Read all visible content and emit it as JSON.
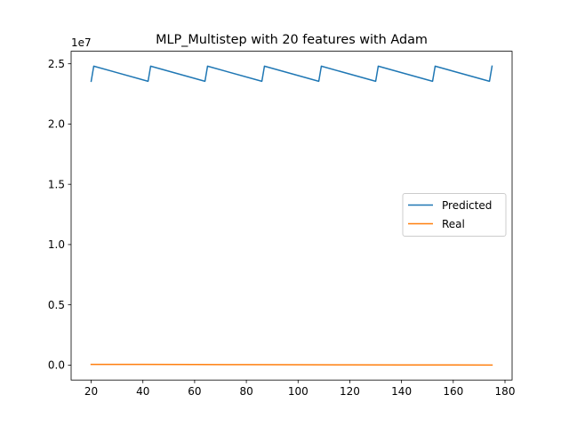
{
  "chart_data": {
    "type": "line",
    "title": "MLP_Multistep with 20 features with Adam",
    "xlabel": "",
    "ylabel": "",
    "y_offset_label": "1e7",
    "xlim": [
      12.25,
      182.75
    ],
    "ylim": [
      -1240000,
      26040000
    ],
    "xticks": [
      20,
      40,
      60,
      80,
      100,
      120,
      140,
      160,
      180
    ],
    "xtick_labels": [
      "20",
      "40",
      "60",
      "80",
      "100",
      "120",
      "140",
      "160",
      "180"
    ],
    "yticks": [
      0,
      5000000,
      10000000,
      15000000,
      20000000,
      25000000
    ],
    "ytick_labels": [
      "0.0",
      "0.5",
      "1.0",
      "1.5",
      "2.0",
      "2.5"
    ],
    "grid": false,
    "legend_position": "center-right",
    "series": [
      {
        "name": "Predicted",
        "color": "#1f77b4",
        "x": [
          20,
          21,
          42,
          43,
          64,
          65,
          86,
          87,
          108,
          109,
          130,
          131,
          152,
          153,
          174,
          175
        ],
        "y": [
          23550000,
          24800000,
          23550000,
          24800000,
          23550000,
          24800000,
          23550000,
          24800000,
          23550000,
          24800000,
          23550000,
          24800000,
          23550000,
          24800000,
          23550000,
          24800000
        ]
      },
      {
        "name": "Real",
        "color": "#ff7f0e",
        "x": [
          20,
          40,
          60,
          80,
          100,
          120,
          140,
          160,
          175
        ],
        "y": [
          60000,
          55000,
          45000,
          35000,
          25000,
          20000,
          15000,
          10000,
          5000
        ]
      }
    ]
  }
}
